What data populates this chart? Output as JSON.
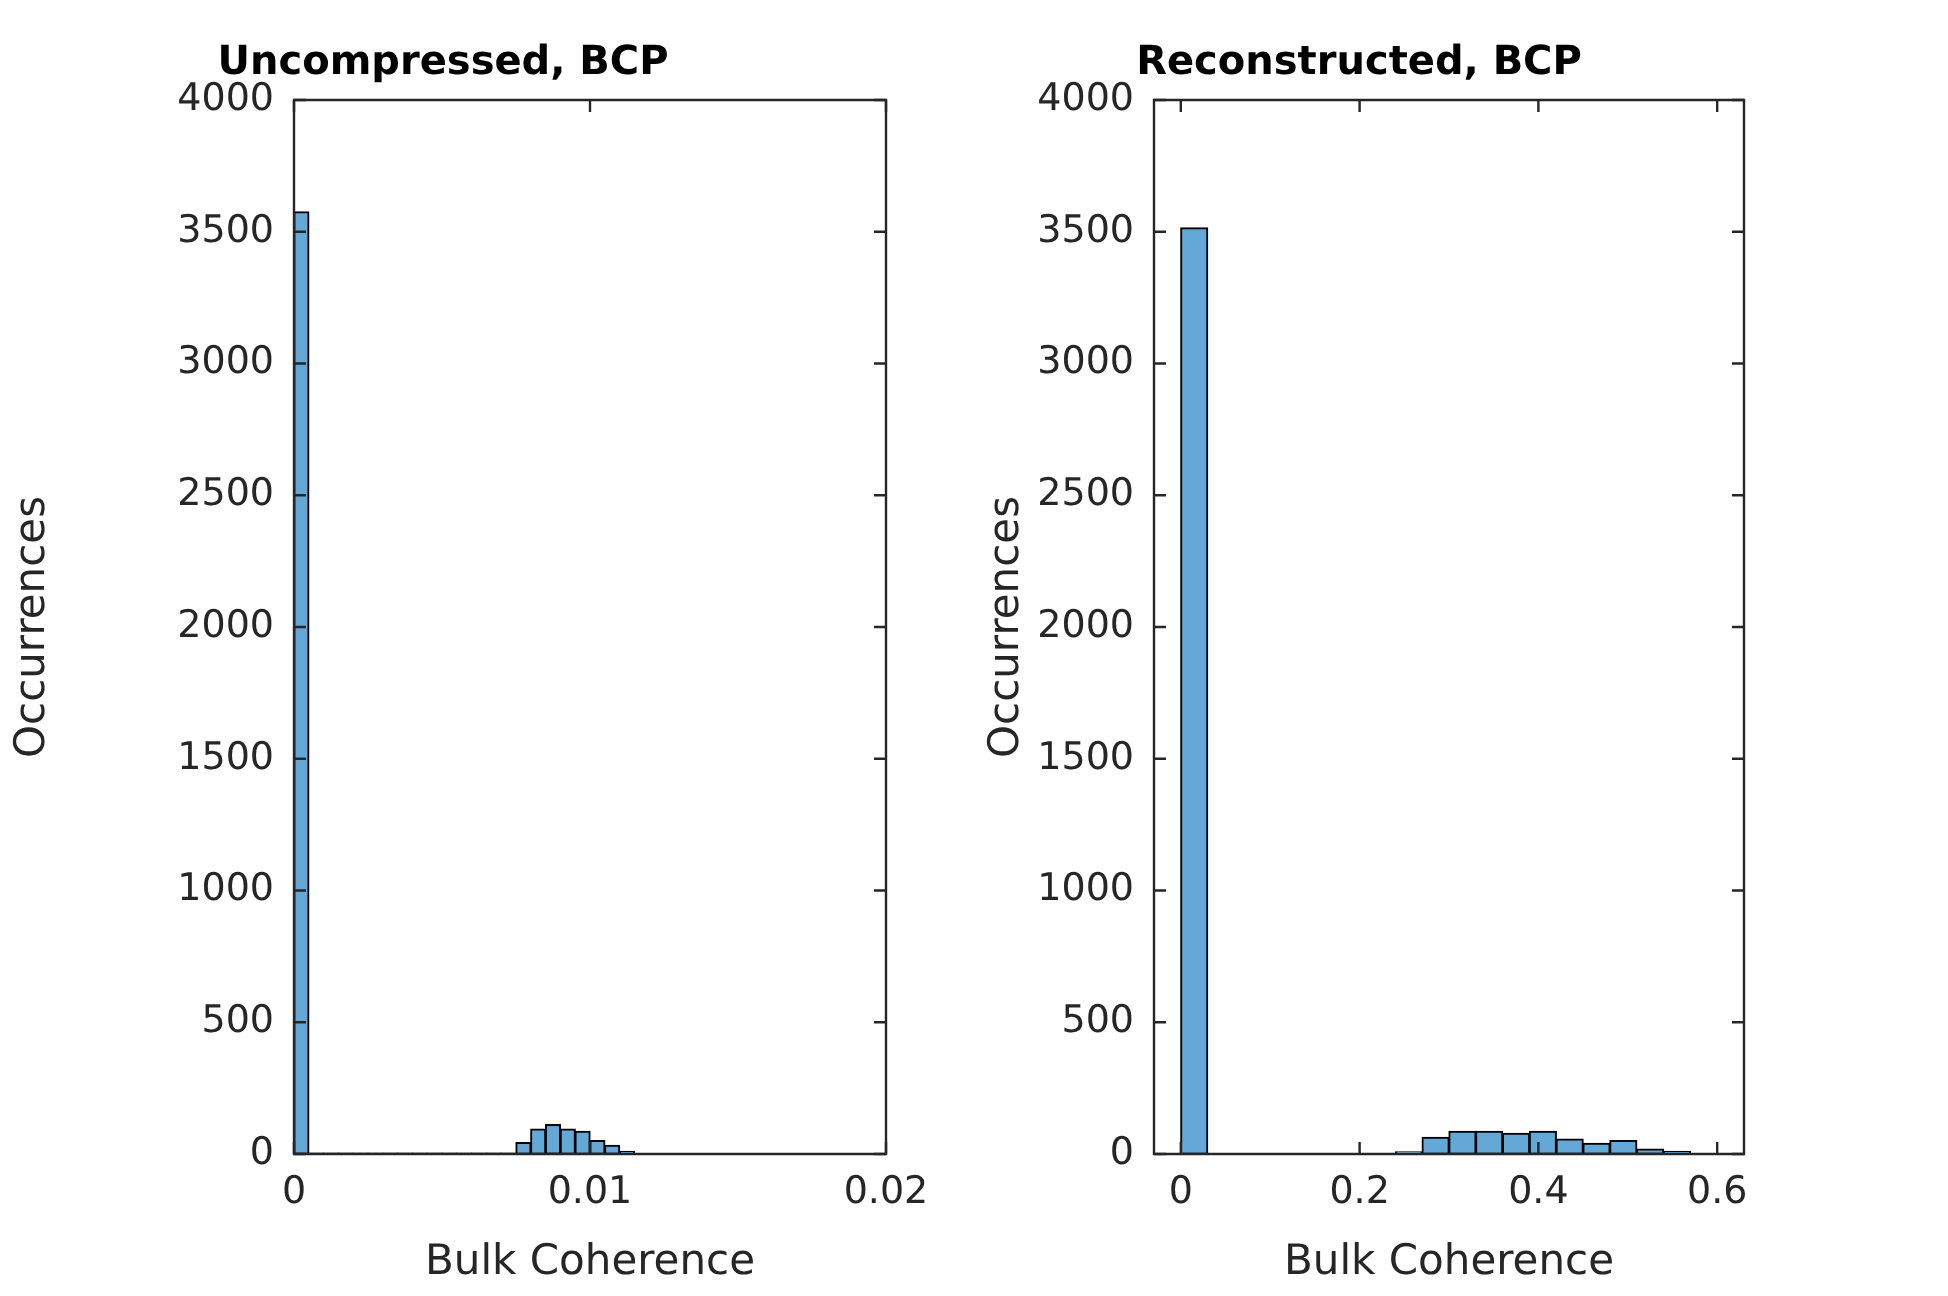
{
  "chart_data": [
    {
      "type": "histogram",
      "title": "Uncompressed, BCP",
      "xlabel": "Bulk Coherence",
      "ylabel": "Occurrences",
      "color": "#64a8d8",
      "bins": [
        0,
        0.0005,
        0.001,
        0.0015,
        0.002,
        0.0025,
        0.003,
        0.0035,
        0.004,
        0.0045,
        0.005,
        0.0055,
        0.006,
        0.0065,
        0.007,
        0.0075,
        0.008,
        0.0085,
        0.009,
        0.0095,
        0.01,
        0.0105,
        0.011,
        0.0115
      ],
      "values": [
        3575,
        3,
        3,
        3,
        3,
        3,
        3,
        3,
        3,
        3,
        3,
        3,
        3,
        3,
        3,
        43,
        94,
        111,
        94,
        86,
        51,
        33,
        10
      ],
      "xlim": [
        0,
        0.02
      ],
      "xticks": [
        0,
        0.01,
        0.02
      ],
      "ylim": [
        0,
        4000
      ],
      "yticks": [
        0,
        500,
        1000,
        1500,
        2000,
        2500,
        3000,
        3500,
        4000
      ]
    },
    {
      "type": "histogram",
      "title": "Reconstructed, BCP",
      "xlabel": "Bulk Coherence",
      "ylabel": "Occurrences",
      "color": "#64a8d8",
      "bins": [
        0,
        0.03,
        0.06,
        0.09,
        0.12,
        0.15,
        0.18,
        0.21,
        0.24,
        0.27,
        0.3,
        0.33,
        0.36,
        0.39,
        0.42,
        0.45,
        0.48,
        0.51,
        0.54,
        0.57
      ],
      "values": [
        3515,
        0,
        0,
        0,
        0,
        0,
        0,
        0,
        8,
        63,
        86,
        86,
        78,
        86,
        56,
        40,
        51,
        18,
        10
      ],
      "xlim": [
        -0.03,
        0.63
      ],
      "xticks": [
        0,
        0.2,
        0.4,
        0.6
      ],
      "ylim": [
        0,
        4000
      ],
      "yticks": [
        0,
        500,
        1000,
        1500,
        2000,
        2500,
        3000,
        3500,
        4000
      ]
    }
  ]
}
